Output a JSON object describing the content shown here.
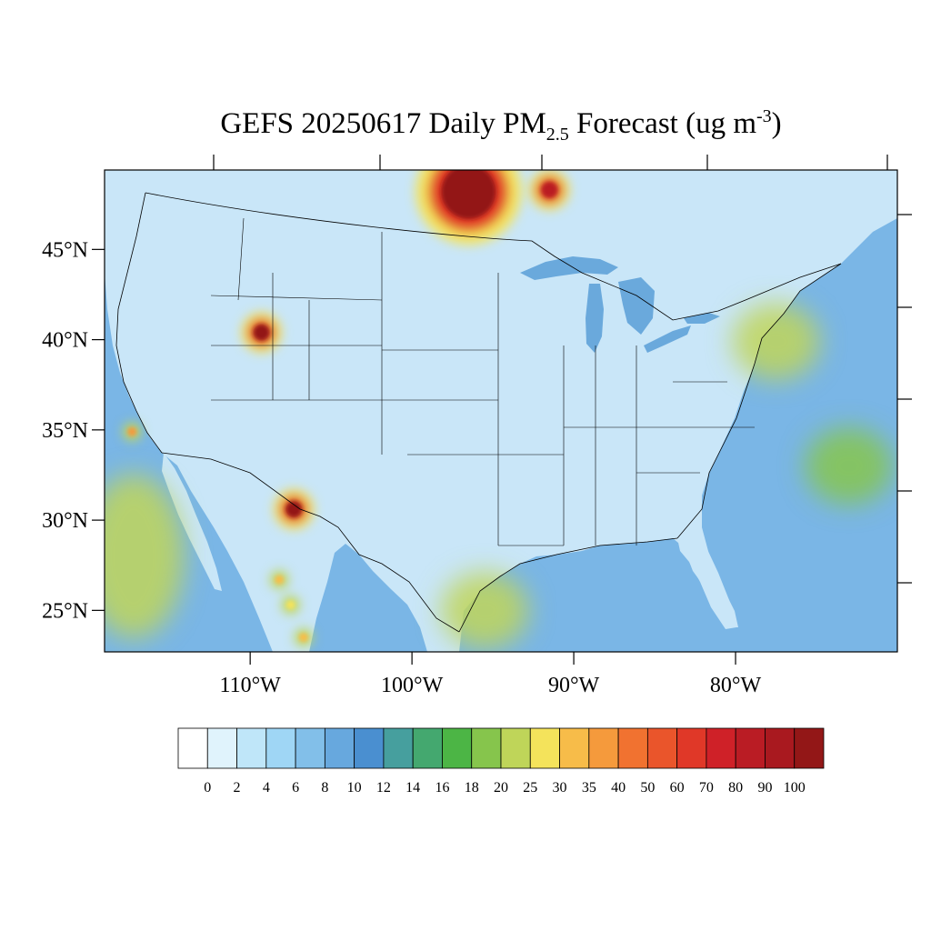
{
  "title": {
    "prefix": "GEFS 20250617 Daily PM",
    "subscript": "2.5",
    "middle": " Forecast (ug m",
    "superscript": "-3",
    "suffix": ")"
  },
  "map": {
    "lon_range": [
      -119,
      -70
    ],
    "lat_range": [
      22.7,
      49.4
    ],
    "ocean_color": "#7ab6e6",
    "land_color": "#c9e6f8",
    "border_color": "#000000",
    "lat_ticks": [
      {
        "value": 45,
        "label": "45°N"
      },
      {
        "value": 40,
        "label": "40°N"
      },
      {
        "value": 35,
        "label": "35°N"
      },
      {
        "value": 30,
        "label": "30°N"
      },
      {
        "value": 25,
        "label": "25°N"
      }
    ],
    "lon_ticks": [
      {
        "value": -110,
        "label": "110°W"
      },
      {
        "value": -100,
        "label": "100°W"
      },
      {
        "value": -90,
        "label": "90°W"
      },
      {
        "value": -80,
        "label": "80°W"
      }
    ]
  },
  "plumes": [
    {
      "name": "manitoba-smoke",
      "lon": -96.5,
      "lat": 48.2,
      "value": 100
    },
    {
      "name": "ontario-smoke",
      "lon": -91.5,
      "lat": 48.3,
      "value": 80
    },
    {
      "name": "utah-fire",
      "lon": -109.3,
      "lat": 40.4,
      "value": 100
    },
    {
      "name": "new-mexico-fire",
      "lon": -107.3,
      "lat": 30.6,
      "value": 100
    },
    {
      "name": "sierra-madre-1",
      "lon": -108.2,
      "lat": 26.7,
      "value": 30
    },
    {
      "name": "sierra-madre-2",
      "lon": -107.5,
      "lat": 25.3,
      "value": 25
    },
    {
      "name": "sierra-madre-3",
      "lon": -106.7,
      "lat": 23.5,
      "value": 30
    },
    {
      "name": "california-coast",
      "lon": -117.3,
      "lat": 34.9,
      "value": 35
    },
    {
      "name": "pennsylvania-haze",
      "lon": -77.5,
      "lat": 39.9,
      "value": 20
    },
    {
      "name": "gulf-of-mexico-haze",
      "lon": -95.5,
      "lat": 25.0,
      "value": 20
    },
    {
      "name": "pacific-haze",
      "lon": -117.2,
      "lat": 28.0,
      "value": 20
    },
    {
      "name": "atlantic-band",
      "lon": -73.0,
      "lat": 33.0,
      "value": 18
    }
  ],
  "colorbar": {
    "colors": [
      "#ffffff",
      "#e0f3fc",
      "#bfe6f9",
      "#9fd6f5",
      "#82bfe9",
      "#67a8de",
      "#4a8fd0",
      "#469f9e",
      "#44a86f",
      "#4cb545",
      "#86c54c",
      "#bfd559",
      "#f4e35b",
      "#f7bc49",
      "#f59a3c",
      "#f17230",
      "#ea552b",
      "#e03828",
      "#cf2128",
      "#ba1c24",
      "#a9191f",
      "#931717"
    ],
    "labels": [
      "0",
      "2",
      "4",
      "6",
      "8",
      "10",
      "12",
      "14",
      "16",
      "18",
      "20",
      "25",
      "30",
      "35",
      "40",
      "50",
      "60",
      "70",
      "80",
      "90",
      "100"
    ]
  }
}
